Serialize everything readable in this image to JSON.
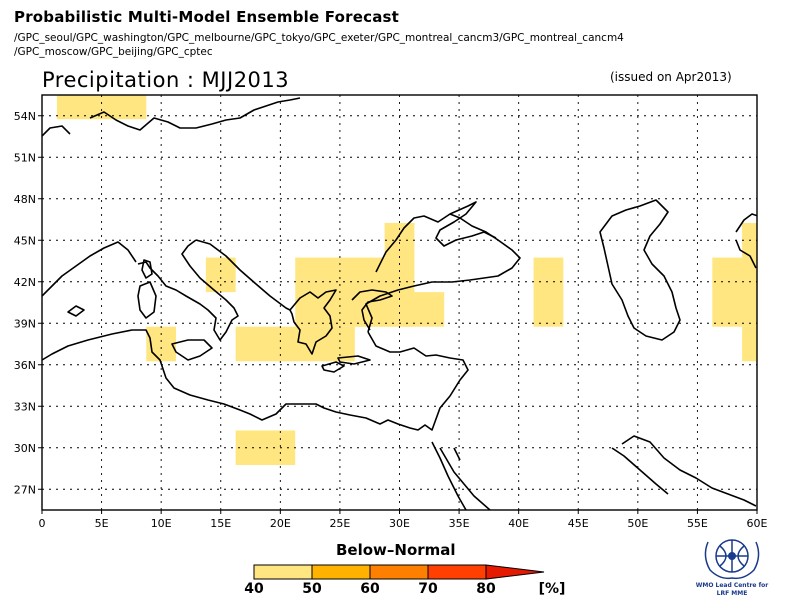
{
  "header": {
    "title": "Probabilistic Multi-Model Ensemble Forecast",
    "models_line1": "/GPC_seoul/GPC_washington/GPC_melbourne/GPC_tokyo/GPC_exeter/GPC_montreal_cancm3/GPC_montreal_cancm4",
    "models_line2": "/GPC_moscow/GPC_beijing/GPC_cptec"
  },
  "map": {
    "title": "Precipitation : MJJ2013",
    "issued": "(issued on Apr2013)",
    "lat_range": [
      25.5,
      55.5
    ],
    "lon_range": [
      0,
      60
    ],
    "lat_ticks": [
      "54N",
      "51N",
      "48N",
      "45N",
      "42N",
      "39N",
      "36N",
      "33N",
      "30N",
      "27N"
    ],
    "lat_values": [
      54,
      51,
      48,
      45,
      42,
      39,
      36,
      33,
      30,
      27
    ],
    "lon_ticks": [
      "0",
      "5E",
      "10E",
      "15E",
      "20E",
      "25E",
      "30E",
      "35E",
      "40E",
      "45E",
      "50E",
      "55E",
      "60E"
    ],
    "lon_values": [
      0,
      5,
      10,
      15,
      20,
      25,
      30,
      35,
      40,
      45,
      50,
      55,
      60
    ],
    "below_normal_cells": [
      {
        "lon": [
          1.25,
          8.75
        ],
        "lat": [
          53.75,
          55.5
        ],
        "category": "40"
      },
      {
        "lon": [
          8.75,
          11.25
        ],
        "lat": [
          36.25,
          38.75
        ],
        "category": "40"
      },
      {
        "lon": [
          13.75,
          16.25
        ],
        "lat": [
          41.25,
          43.75
        ],
        "category": "40"
      },
      {
        "lon": [
          16.25,
          26.25
        ],
        "lat": [
          36.25,
          38.75
        ],
        "category": "40"
      },
      {
        "lon": [
          21.25,
          31.25
        ],
        "lat": [
          38.75,
          43.75
        ],
        "category": "40"
      },
      {
        "lon": [
          28.75,
          31.25
        ],
        "lat": [
          43.75,
          46.25
        ],
        "category": "40"
      },
      {
        "lon": [
          26.25,
          33.75
        ],
        "lat": [
          38.75,
          41.25
        ],
        "category": "40"
      },
      {
        "lon": [
          41.25,
          43.75
        ],
        "lat": [
          38.75,
          43.75
        ],
        "category": "40"
      },
      {
        "lon": [
          56.25,
          60
        ],
        "lat": [
          38.75,
          43.75
        ],
        "category": "40"
      },
      {
        "lon": [
          58.75,
          60
        ],
        "lat": [
          36.25,
          38.75
        ],
        "category": "40"
      },
      {
        "lon": [
          58.75,
          60
        ],
        "lat": [
          43.75,
          46.25
        ],
        "category": "40"
      },
      {
        "lon": [
          16.25,
          21.25
        ],
        "lat": [
          28.75,
          31.25
        ],
        "category": "40"
      }
    ]
  },
  "legend": {
    "title": "Below–Normal",
    "unit": "[%]",
    "bins": [
      {
        "label": "40",
        "color": "#ffe680"
      },
      {
        "label": "50",
        "color": "#ffb300"
      },
      {
        "label": "60",
        "color": "#ff8000"
      },
      {
        "label": "70",
        "color": "#ff4000"
      },
      {
        "label": "80",
        "color": "#e61a00"
      }
    ]
  },
  "logo": {
    "text_line1": "WMO Lead Centre for",
    "text_line2": "LRF MME"
  },
  "colors": {
    "below_normal_40": "#ffe680",
    "coastline": "#000000",
    "gridline": "#000000"
  }
}
